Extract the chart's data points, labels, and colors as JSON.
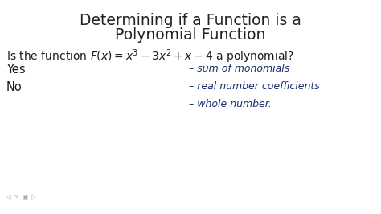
{
  "title_line1": "Determining if a Function is a",
  "title_line2": "Polynomial Function",
  "title_fontsize": 13.5,
  "title_color": "#222222",
  "bg_color": "#ffffff",
  "question": "Is the function F(x) = x$^3$ − 3x$^2$ + x − 4 a polynomial?",
  "yes_text": "Yes",
  "no_text": "No",
  "bullet1": "– sum of monomials",
  "bullet2": "– real number coefficients",
  "bullet3": "– whole number.",
  "handwritten_color": "#1a2e6e",
  "printed_color": "#1a1a1a",
  "handwritten_fontsize": 9.0,
  "printed_fontsize": 10.0,
  "yes_no_fontsize": 10.5
}
